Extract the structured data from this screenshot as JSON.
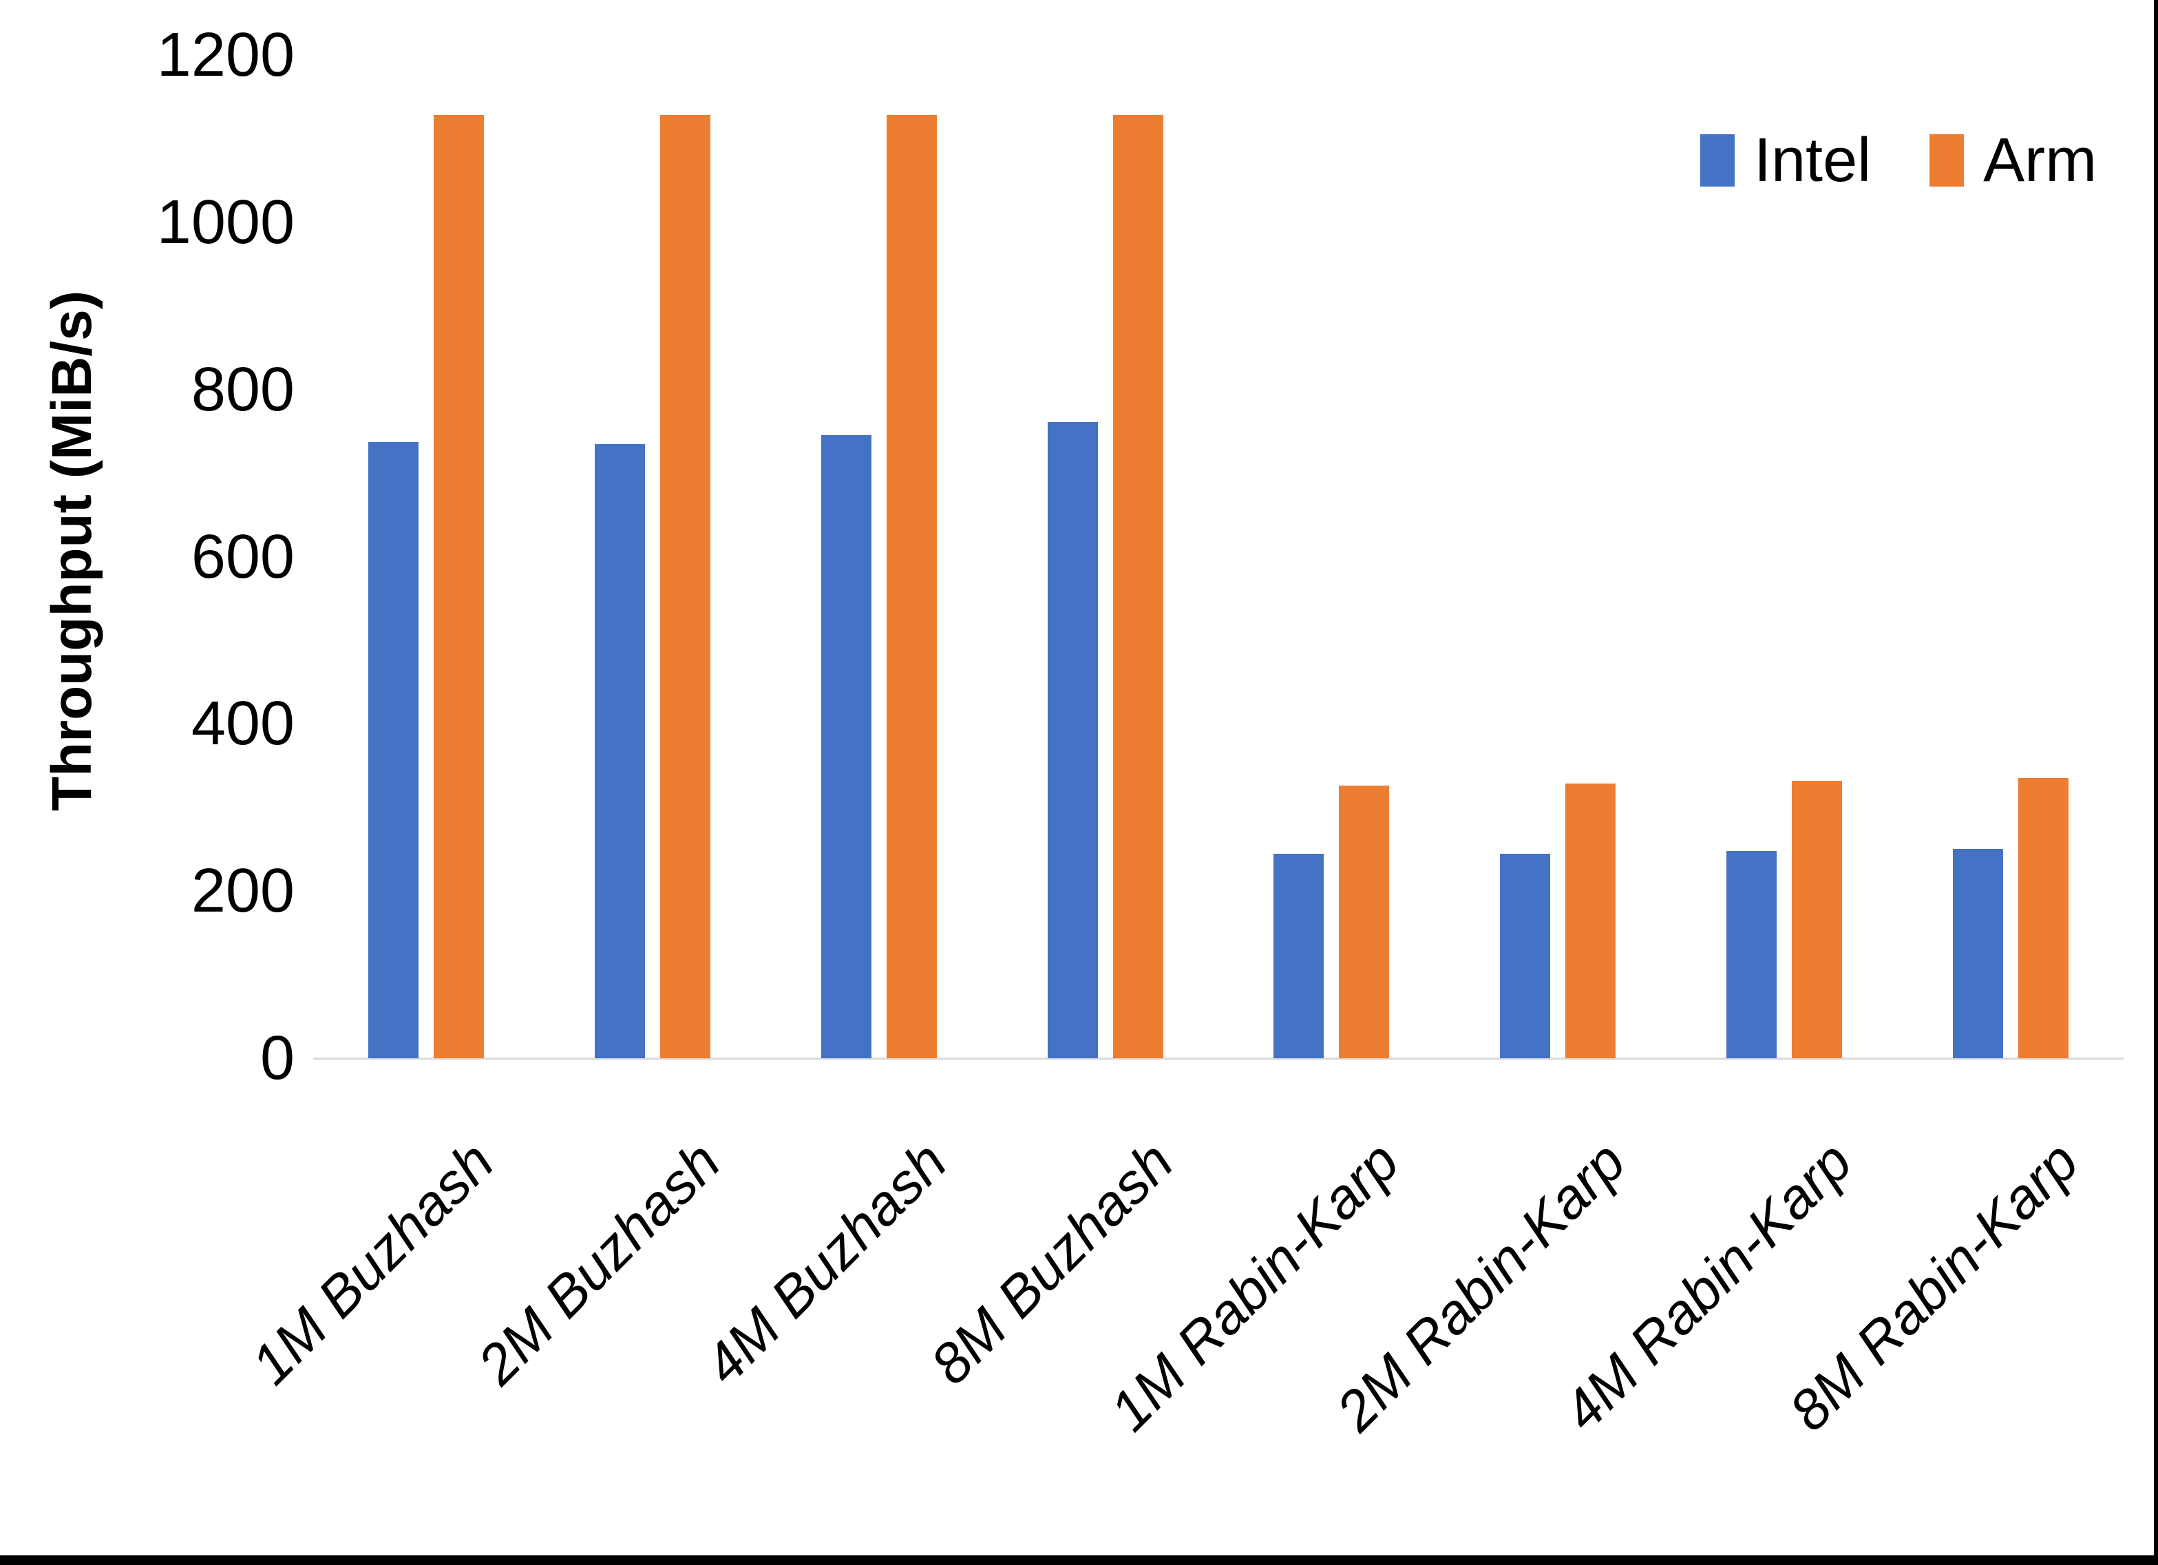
{
  "chart_data": {
    "type": "bar",
    "title": "",
    "ylabel": "Throughput (MiB/s)",
    "xlabel": "",
    "ylim": [
      0,
      1200
    ],
    "yticks": [
      0,
      200,
      400,
      600,
      800,
      1000,
      1200
    ],
    "grid": false,
    "legend_position": "top-right",
    "categories": [
      "1M Buzhash",
      "2M Buzhash",
      "4M Buzhash",
      "8M Buzhash",
      "1M Rabin-Karp",
      "2M Rabin-Karp",
      "4M Rabin-Karp",
      "8M Rabin-Karp"
    ],
    "series": [
      {
        "name": "Intel",
        "color": "#4472C4",
        "values": [
          737,
          735,
          745,
          761,
          245,
          245,
          248,
          250
        ]
      },
      {
        "name": "Arm",
        "color": "#ED7D31",
        "values": [
          1128,
          1128,
          1128,
          1128,
          326,
          329,
          332,
          335
        ]
      }
    ],
    "colors": {
      "intel": "#4472C4",
      "arm": "#ED7D31",
      "axis_line": "#D9D9D9",
      "text": "#000000",
      "frame": "#000000"
    }
  }
}
